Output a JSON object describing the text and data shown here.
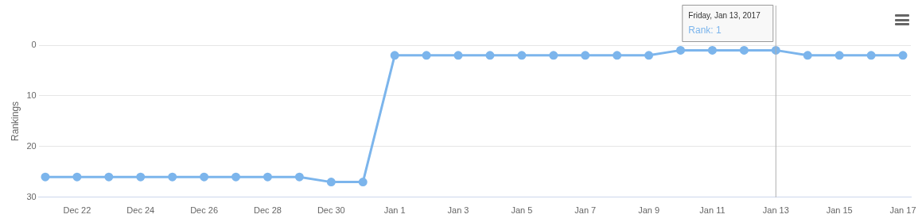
{
  "chart_data": {
    "type": "line",
    "ylabel": "Rankings",
    "x": [
      "2016-12-21",
      "2016-12-22",
      "2016-12-23",
      "2016-12-24",
      "2016-12-25",
      "2016-12-26",
      "2016-12-27",
      "2016-12-28",
      "2016-12-29",
      "2016-12-30",
      "2016-12-31",
      "2017-01-01",
      "2017-01-02",
      "2017-01-03",
      "2017-01-04",
      "2017-01-05",
      "2017-01-06",
      "2017-01-07",
      "2017-01-08",
      "2017-01-09",
      "2017-01-10",
      "2017-01-11",
      "2017-01-12",
      "2017-01-13",
      "2017-01-14",
      "2017-01-15",
      "2017-01-16",
      "2017-01-17"
    ],
    "series": [
      {
        "color": "#7cb5ec",
        "values": [
          26,
          26,
          26,
          26,
          26,
          26,
          26,
          26,
          26,
          27,
          27,
          2,
          2,
          2,
          2,
          2,
          2,
          2,
          2,
          2,
          1,
          1,
          1,
          1,
          2,
          2,
          2,
          2
        ]
      }
    ],
    "xlim": [
      "2016-12-20T19:00",
      "2017-01-17T06:00"
    ],
    "xticks": [
      {
        "value": "2016-12-22",
        "label": "Dec 22"
      },
      {
        "value": "2016-12-24",
        "label": "Dec 24"
      },
      {
        "value": "2016-12-26",
        "label": "Dec 26"
      },
      {
        "value": "2016-12-28",
        "label": "Dec 28"
      },
      {
        "value": "2016-12-30",
        "label": "Dec 30"
      },
      {
        "value": "2017-01-01",
        "label": "Jan 1"
      },
      {
        "value": "2017-01-03",
        "label": "Jan 3"
      },
      {
        "value": "2017-01-05",
        "label": "Jan 5"
      },
      {
        "value": "2017-01-07",
        "label": "Jan 7"
      },
      {
        "value": "2017-01-09",
        "label": "Jan 9"
      },
      {
        "value": "2017-01-11",
        "label": "Jan 11"
      },
      {
        "value": "2017-01-13",
        "label": "Jan 13"
      },
      {
        "value": "2017-01-15",
        "label": "Jan 15"
      },
      {
        "value": "2017-01-17",
        "label": "Jan 17"
      }
    ],
    "ylim": [
      30,
      0
    ],
    "yticks": [
      0,
      10,
      20,
      30
    ],
    "grid": "y",
    "legend": false,
    "marker": "circle",
    "line_style": "solid",
    "ref_lines": [
      {
        "axis": "x",
        "value": "2017-01-13",
        "color": "#b0b0b0"
      }
    ],
    "annotations": [
      "Friday, Jan 13, 2017",
      "Rank: 1"
    ]
  }
}
